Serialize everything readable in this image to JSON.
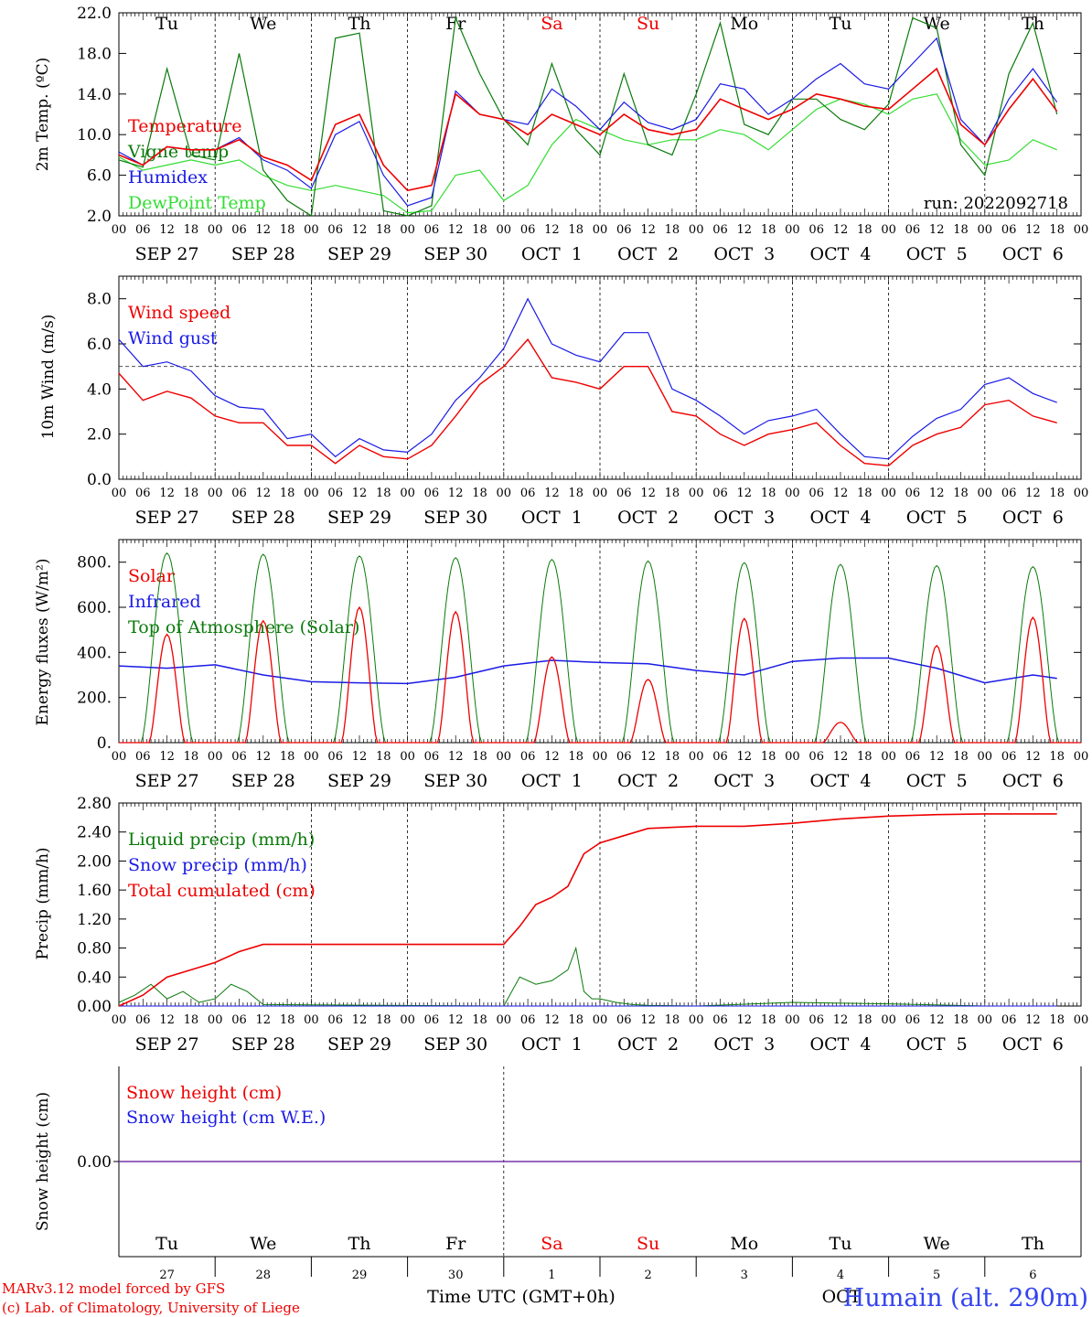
{
  "colors": {
    "red": "#ee0000",
    "green": "#0a7a0a",
    "blue": "#1a1ae6",
    "lightgreen": "#33dd33",
    "purple": "#7733aa",
    "black": "#000000"
  },
  "x_axis": {
    "hour_labels": [
      "00",
      "06",
      "12",
      "18"
    ],
    "date_labels": [
      "SEP 27",
      "SEP 28",
      "SEP 29",
      "SEP 30",
      "OCT  1",
      "OCT  2",
      "OCT  3",
      "OCT  4",
      "OCT  5",
      "OCT  6"
    ],
    "weekdays": [
      "Tu",
      "We",
      "Th",
      "Fr",
      "Sa",
      "Su",
      "Mo",
      "Tu",
      "We",
      "Th"
    ],
    "weekend_indices": [
      4,
      5
    ],
    "day_numbers": [
      "27",
      "28",
      "29",
      "30",
      "1",
      "2",
      "3",
      "4",
      "5",
      "6"
    ],
    "month_label": "OCT",
    "title": "Time UTC (GMT+0h)"
  },
  "footer": {
    "credit_1": "MARv3.12 model forced by GFS",
    "credit_2": "(c) Lab. of Climatology, University of Liege",
    "station": "Humain (alt. 290m)"
  },
  "chart_data": [
    {
      "id": "temperature",
      "type": "line",
      "ylabel": "2m Temp. (ºC)",
      "ylim": [
        2,
        22
      ],
      "yticks": [
        "2.0",
        "6.0",
        "10.0",
        "14.0",
        "18.0",
        "22.0"
      ],
      "ytick_values": [
        2,
        6,
        10,
        14,
        18,
        22
      ],
      "run": "run: 2022092718",
      "x_unit": "hours since 2022-09-27 00 UTC",
      "series": [
        {
          "name": "Temperature",
          "color": "red",
          "x": [
            0,
            6,
            12,
            18,
            24,
            30,
            36,
            42,
            48,
            54,
            60,
            66,
            72,
            78,
            84,
            90,
            96,
            102,
            108,
            114,
            120,
            126,
            132,
            138,
            144,
            150,
            156,
            162,
            168,
            174,
            180,
            186,
            192,
            198,
            204,
            210,
            216,
            222,
            228,
            234
          ],
          "y": [
            8,
            7,
            8.8,
            8.5,
            8.5,
            9.5,
            7.8,
            7,
            5.5,
            11,
            12,
            7,
            4.5,
            5,
            14,
            12,
            11.5,
            10,
            12,
            11,
            10,
            12,
            10.5,
            10,
            10.5,
            13.5,
            12.5,
            11.5,
            12.5,
            14,
            13.5,
            12.8,
            12.5,
            14.5,
            16.5,
            11,
            9,
            12.5,
            15.5,
            12.3
          ]
        },
        {
          "name": "Vigne temp",
          "color": "green",
          "x": [
            0,
            6,
            12,
            18,
            24,
            30,
            36,
            42,
            48,
            54,
            60,
            66,
            72,
            78,
            84,
            90,
            96,
            102,
            108,
            114,
            120,
            126,
            132,
            138,
            144,
            150,
            156,
            162,
            168,
            174,
            180,
            186,
            192,
            198,
            204,
            210,
            216,
            222,
            228,
            234
          ],
          "y": [
            7.5,
            6.8,
            16.5,
            8,
            7.5,
            18,
            6.5,
            3.5,
            2,
            19.5,
            20,
            2.5,
            2,
            3,
            21.5,
            16,
            11.5,
            9,
            17,
            10.5,
            8,
            16,
            9,
            8,
            14,
            21,
            11,
            10,
            13.5,
            13.5,
            11.5,
            10.5,
            13,
            21.5,
            20.5,
            9,
            6,
            16,
            21,
            12
          ]
        },
        {
          "name": "Humidex",
          "color": "blue",
          "x": [
            0,
            6,
            12,
            18,
            24,
            30,
            36,
            42,
            48,
            54,
            60,
            66,
            72,
            78,
            84,
            90,
            96,
            102,
            108,
            114,
            120,
            126,
            132,
            138,
            144,
            150,
            156,
            162,
            168,
            174,
            180,
            186,
            192,
            198,
            204,
            210,
            216,
            222,
            228,
            234
          ],
          "y": [
            8.3,
            7,
            8.8,
            8.5,
            8.5,
            9.7,
            7.5,
            6.5,
            4.7,
            10,
            11.3,
            6,
            3,
            3.8,
            14.3,
            12,
            11.5,
            11,
            14.5,
            12.8,
            10.5,
            13.2,
            11.2,
            10.5,
            11.5,
            15,
            14.5,
            12,
            13.5,
            15.5,
            17,
            15,
            14.5,
            17,
            19.5,
            11.5,
            9,
            13.5,
            16.5,
            13.2
          ]
        },
        {
          "name": "DewPoint Temp",
          "color": "lightgreen",
          "x": [
            0,
            6,
            12,
            18,
            24,
            30,
            36,
            42,
            48,
            54,
            60,
            66,
            72,
            78,
            84,
            90,
            96,
            102,
            108,
            114,
            120,
            126,
            132,
            138,
            144,
            150,
            156,
            162,
            168,
            174,
            180,
            186,
            192,
            198,
            204,
            210,
            216,
            222,
            228,
            234
          ],
          "y": [
            7.8,
            6.5,
            7,
            7.5,
            7,
            7.5,
            6,
            5,
            4.5,
            5,
            4.5,
            4,
            2.3,
            2.5,
            6,
            6.5,
            3.5,
            5,
            9,
            11.5,
            10.5,
            9.5,
            9,
            9.5,
            9.5,
            10.5,
            10,
            8.5,
            10.5,
            12.5,
            13.5,
            13,
            12,
            13.5,
            14,
            9.5,
            7,
            7.5,
            9.5,
            8.5
          ]
        }
      ]
    },
    {
      "id": "wind",
      "type": "line",
      "ylabel": "10m Wind (m/s)",
      "ylim": [
        0,
        9
      ],
      "yticks": [
        "0.0",
        "2.0",
        "4.0",
        "6.0",
        "8.0"
      ],
      "ytick_values": [
        0,
        2,
        4,
        6,
        8
      ],
      "reference_line": 5,
      "series": [
        {
          "name": "Wind speed",
          "color": "red",
          "x": [
            0,
            6,
            12,
            18,
            24,
            30,
            36,
            42,
            48,
            54,
            60,
            66,
            72,
            78,
            84,
            90,
            96,
            102,
            108,
            114,
            120,
            126,
            132,
            138,
            144,
            150,
            156,
            162,
            168,
            174,
            180,
            186,
            192,
            198,
            204,
            210,
            216,
            222,
            228,
            234
          ],
          "y": [
            4.7,
            3.5,
            3.9,
            3.6,
            2.8,
            2.5,
            2.5,
            1.5,
            1.5,
            0.7,
            1.5,
            1,
            0.9,
            1.5,
            2.8,
            4.2,
            5,
            6.2,
            4.5,
            4.3,
            4,
            5,
            5,
            3,
            2.8,
            2,
            1.5,
            2,
            2.2,
            2.5,
            1.5,
            0.7,
            0.6,
            1.5,
            2,
            2.3,
            3.3,
            3.5,
            2.8,
            2.5
          ]
        },
        {
          "name": "Wind gust",
          "color": "blue",
          "x": [
            0,
            6,
            12,
            18,
            24,
            30,
            36,
            42,
            48,
            54,
            60,
            66,
            72,
            78,
            84,
            90,
            96,
            102,
            108,
            114,
            120,
            126,
            132,
            138,
            144,
            150,
            156,
            162,
            168,
            174,
            180,
            186,
            192,
            198,
            204,
            210,
            216,
            222,
            228,
            234
          ],
          "y": [
            6.2,
            5,
            5.2,
            4.8,
            3.7,
            3.2,
            3.1,
            1.8,
            2,
            1,
            1.8,
            1.3,
            1.2,
            2,
            3.5,
            4.5,
            5.8,
            8,
            6,
            5.5,
            5.2,
            6.5,
            6.5,
            4,
            3.5,
            2.8,
            2,
            2.6,
            2.8,
            3.1,
            2,
            1,
            0.9,
            1.9,
            2.7,
            3.1,
            4.2,
            4.5,
            3.8,
            3.4
          ]
        }
      ]
    },
    {
      "id": "energy",
      "type": "line",
      "ylabel": "Energy fluxes (W/m²)",
      "ylim": [
        0,
        900
      ],
      "yticks": [
        "0.",
        "200.",
        "400.",
        "600.",
        "800."
      ],
      "ytick_values": [
        0,
        200,
        400,
        600,
        800
      ],
      "solar_peaks": [
        480,
        540,
        600,
        580,
        380,
        280,
        550,
        90,
        430,
        555
      ],
      "toa_peaks": [
        840,
        835,
        828,
        820,
        812,
        805,
        798,
        790,
        785,
        780
      ],
      "series": [
        {
          "name": "Solar",
          "color": "red"
        },
        {
          "name": "Infrared",
          "color": "blue",
          "x": [
            0,
            12,
            24,
            36,
            48,
            60,
            72,
            84,
            96,
            108,
            120,
            132,
            144,
            156,
            168,
            180,
            192,
            204,
            216,
            228,
            234
          ],
          "y": [
            340,
            330,
            345,
            300,
            270,
            265,
            262,
            290,
            340,
            365,
            355,
            350,
            320,
            300,
            360,
            375,
            375,
            330,
            265,
            300,
            285
          ]
        },
        {
          "name": "Top of Atmosphere (Solar)",
          "color": "green"
        }
      ]
    },
    {
      "id": "precip",
      "type": "line",
      "ylabel": "Precip (mm/h)",
      "ylim": [
        0,
        2.8
      ],
      "yticks": [
        "0.00",
        "0.40",
        "0.80",
        "1.20",
        "1.60",
        "2.00",
        "2.40",
        "2.80"
      ],
      "ytick_values": [
        0,
        0.4,
        0.8,
        1.2,
        1.6,
        2,
        2.4,
        2.8
      ],
      "series": [
        {
          "name": "Liquid precip (mm/h)",
          "color": "green",
          "x": [
            0,
            4,
            8,
            12,
            16,
            20,
            24,
            28,
            32,
            36,
            96,
            100,
            104,
            108,
            112,
            114,
            116,
            118,
            120,
            124,
            128,
            132,
            144,
            168,
            192,
            216,
            234
          ],
          "y": [
            0.05,
            0.15,
            0.3,
            0.1,
            0.2,
            0.05,
            0.1,
            0.3,
            0.2,
            0.02,
            0,
            0.4,
            0.3,
            0.35,
            0.5,
            0.8,
            0.2,
            0.1,
            0.1,
            0.05,
            0.02,
            0.01,
            0,
            0.05,
            0.03,
            0,
            0
          ]
        },
        {
          "name": "Snow precip (mm/h)",
          "color": "blue",
          "x": [
            0,
            234
          ],
          "y": [
            0,
            0
          ]
        },
        {
          "name": "Total cumulated (cm)",
          "color": "red",
          "x": [
            0,
            6,
            12,
            18,
            24,
            30,
            36,
            48,
            60,
            72,
            84,
            96,
            100,
            104,
            108,
            112,
            116,
            120,
            126,
            132,
            144,
            156,
            168,
            180,
            192,
            204,
            216,
            234
          ],
          "y": [
            0,
            0.15,
            0.4,
            0.5,
            0.6,
            0.75,
            0.85,
            0.85,
            0.85,
            0.85,
            0.85,
            0.85,
            1.1,
            1.4,
            1.5,
            1.65,
            2.1,
            2.25,
            2.35,
            2.45,
            2.48,
            2.48,
            2.52,
            2.58,
            2.62,
            2.64,
            2.65,
            2.65
          ]
        }
      ]
    },
    {
      "id": "snow",
      "type": "line",
      "ylabel": "Snow height (cm)",
      "ytick": "0.00",
      "series": [
        {
          "name": "Snow height (cm)",
          "color": "red",
          "x": [
            0,
            234
          ],
          "y": [
            0,
            0
          ]
        },
        {
          "name": "Snow height (cm W.E.)",
          "color": "blue",
          "x": [
            0,
            234
          ],
          "y": [
            0,
            0
          ]
        }
      ]
    }
  ]
}
